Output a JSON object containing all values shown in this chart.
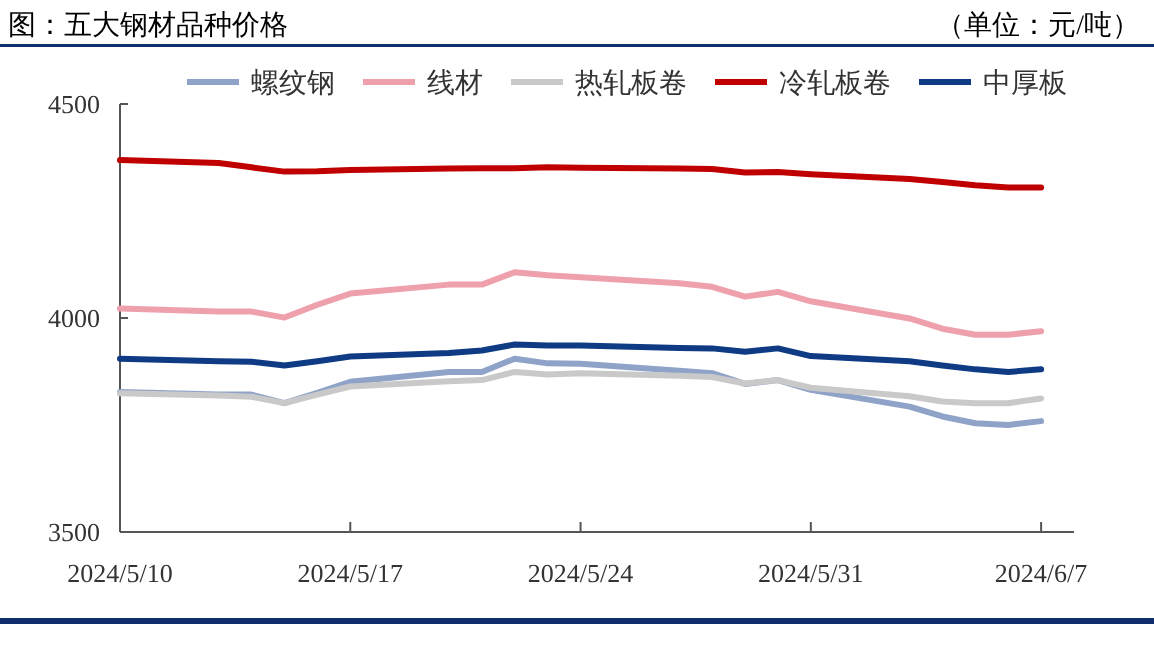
{
  "chart_data": {
    "type": "line",
    "title": "图：五大钢材品种价格",
    "subtitle": "（单位：元/吨）",
    "x": [
      "2024-05-10",
      "2024-05-13",
      "2024-05-14",
      "2024-05-15",
      "2024-05-16",
      "2024-05-17",
      "2024-05-20",
      "2024-05-21",
      "2024-05-22",
      "2024-05-23",
      "2024-05-24",
      "2024-05-27",
      "2024-05-28",
      "2024-05-29",
      "2024-05-30",
      "2024-05-31",
      "2024-06-03",
      "2024-06-04",
      "2024-06-05",
      "2024-06-06",
      "2024-06-07"
    ],
    "series": [
      {
        "name": "螺纹钢",
        "color": "#8fa3c9",
        "values": [
          3827,
          3821,
          3821,
          3801,
          3825,
          3851,
          3874,
          3874,
          3905,
          3894,
          3893,
          3877,
          3871,
          3846,
          3855,
          3832,
          3793,
          3770,
          3754,
          3750,
          3759
        ]
      },
      {
        "name": "线材",
        "color": "#eea1ad",
        "values": [
          4022,
          4015,
          4015,
          4001,
          4031,
          4057,
          4078,
          4078,
          4107,
          4100,
          4095,
          4081,
          4073,
          4050,
          4061,
          4039,
          3999,
          3975,
          3961,
          3961,
          3969
        ]
      },
      {
        "name": "热轧板卷",
        "color": "#c9c9c9",
        "values": [
          3824,
          3819,
          3816,
          3801,
          3821,
          3840,
          3852,
          3855,
          3874,
          3868,
          3871,
          3865,
          3862,
          3847,
          3855,
          3837,
          3817,
          3805,
          3801,
          3801,
          3812
        ]
      },
      {
        "name": "冷轧板卷",
        "color": "#c00000",
        "values": [
          4369,
          4362,
          4352,
          4342,
          4343,
          4346,
          4349,
          4350,
          4350,
          4352,
          4351,
          4349,
          4348,
          4340,
          4341,
          4336,
          4325,
          4318,
          4310,
          4305,
          4305
        ]
      },
      {
        "name": "中厚板",
        "color": "#0e3b84",
        "values": [
          3905,
          3899,
          3898,
          3889,
          3899,
          3910,
          3918,
          3924,
          3938,
          3936,
          3936,
          3930,
          3929,
          3921,
          3929,
          3911,
          3899,
          3889,
          3880,
          3874,
          3880
        ]
      }
    ],
    "xlim": [
      "2024-05-10",
      "2024-06-08"
    ],
    "xticks": [
      {
        "value": "2024-05-10",
        "label": "2024/5/10"
      },
      {
        "value": "2024-05-17",
        "label": "2024/5/17"
      },
      {
        "value": "2024-05-24",
        "label": "2024/5/24"
      },
      {
        "value": "2024-05-31",
        "label": "2024/5/31"
      },
      {
        "value": "2024-06-07",
        "label": "2024/6/7"
      }
    ],
    "ylim": [
      3500,
      4500
    ],
    "yticks": [
      3500,
      4000,
      4500
    ],
    "legend": "top",
    "grid": false,
    "marker": "none",
    "line_style": "solid"
  }
}
